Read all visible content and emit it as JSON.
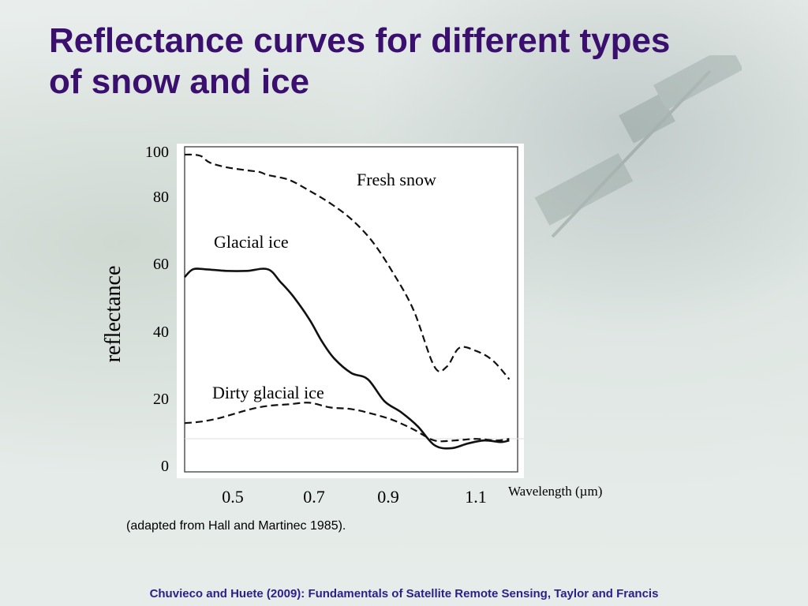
{
  "slide": {
    "title": "Reflectance curves for different types of snow and ice",
    "source_note": "(adapted from Hall and Martinec 1985).",
    "footer": "Chuvieco and Huete (2009): Fundamentals of Satellite Remote Sensing, Taylor and Francis"
  },
  "chart_data": {
    "type": "line",
    "ylabel": "reflectance",
    "xlabel": "Wavelength   (µm)",
    "xlim": [
      0.4,
      1.2
    ],
    "ylim": [
      0,
      100
    ],
    "xticks": [
      0.5,
      0.7,
      0.9,
      1.1
    ],
    "xtick_labels": [
      "0.5",
      "0.7",
      "0.9",
      "1.1"
    ],
    "yticks": [
      100,
      80,
      60,
      40,
      20,
      0
    ],
    "ytick_labels": [
      "100",
      "80",
      "60",
      "40",
      "20",
      "0"
    ],
    "grid": false,
    "legend": "none (labels placed next to curves)",
    "series": [
      {
        "name": "Fresh snow",
        "style": "dashed",
        "x": [
          0.4,
          0.42,
          0.44,
          0.46,
          0.5,
          0.55,
          0.58,
          0.6,
          0.65,
          0.7,
          0.75,
          0.8,
          0.85,
          0.9,
          0.95,
          1.0,
          1.03,
          1.06,
          1.1,
          1.14,
          1.18
        ],
        "y": [
          99.5,
          99.5,
          99,
          97,
          95.5,
          94.5,
          94,
          93,
          91.5,
          88,
          84,
          79,
          72,
          62,
          50,
          32,
          32,
          38,
          37,
          34,
          28
        ]
      },
      {
        "name": "Glacial ice",
        "style": "solid",
        "x": [
          0.4,
          0.42,
          0.45,
          0.5,
          0.55,
          0.6,
          0.63,
          0.66,
          0.7,
          0.73,
          0.76,
          0.8,
          0.84,
          0.88,
          0.92,
          0.96,
          1.0,
          1.04,
          1.08,
          1.12,
          1.16,
          1.18
        ],
        "y": [
          60.5,
          63,
          63,
          62.5,
          62.5,
          63,
          59,
          54.5,
          47,
          40,
          34.5,
          30,
          28,
          21,
          17.5,
          13,
          7,
          6,
          7.5,
          8.5,
          8,
          8.5
        ]
      },
      {
        "name": "Dirty glacial ice",
        "style": "dashed",
        "x": [
          0.4,
          0.44,
          0.48,
          0.52,
          0.56,
          0.6,
          0.65,
          0.7,
          0.75,
          0.8,
          0.85,
          0.9,
          0.95,
          1.0,
          1.05,
          1.1,
          1.15,
          1.18
        ],
        "y": [
          14,
          14.5,
          15.5,
          17,
          18.5,
          19.5,
          20,
          20.5,
          19,
          18.5,
          17,
          15,
          12,
          8.5,
          8.5,
          9,
          8.5,
          9
        ]
      }
    ]
  }
}
